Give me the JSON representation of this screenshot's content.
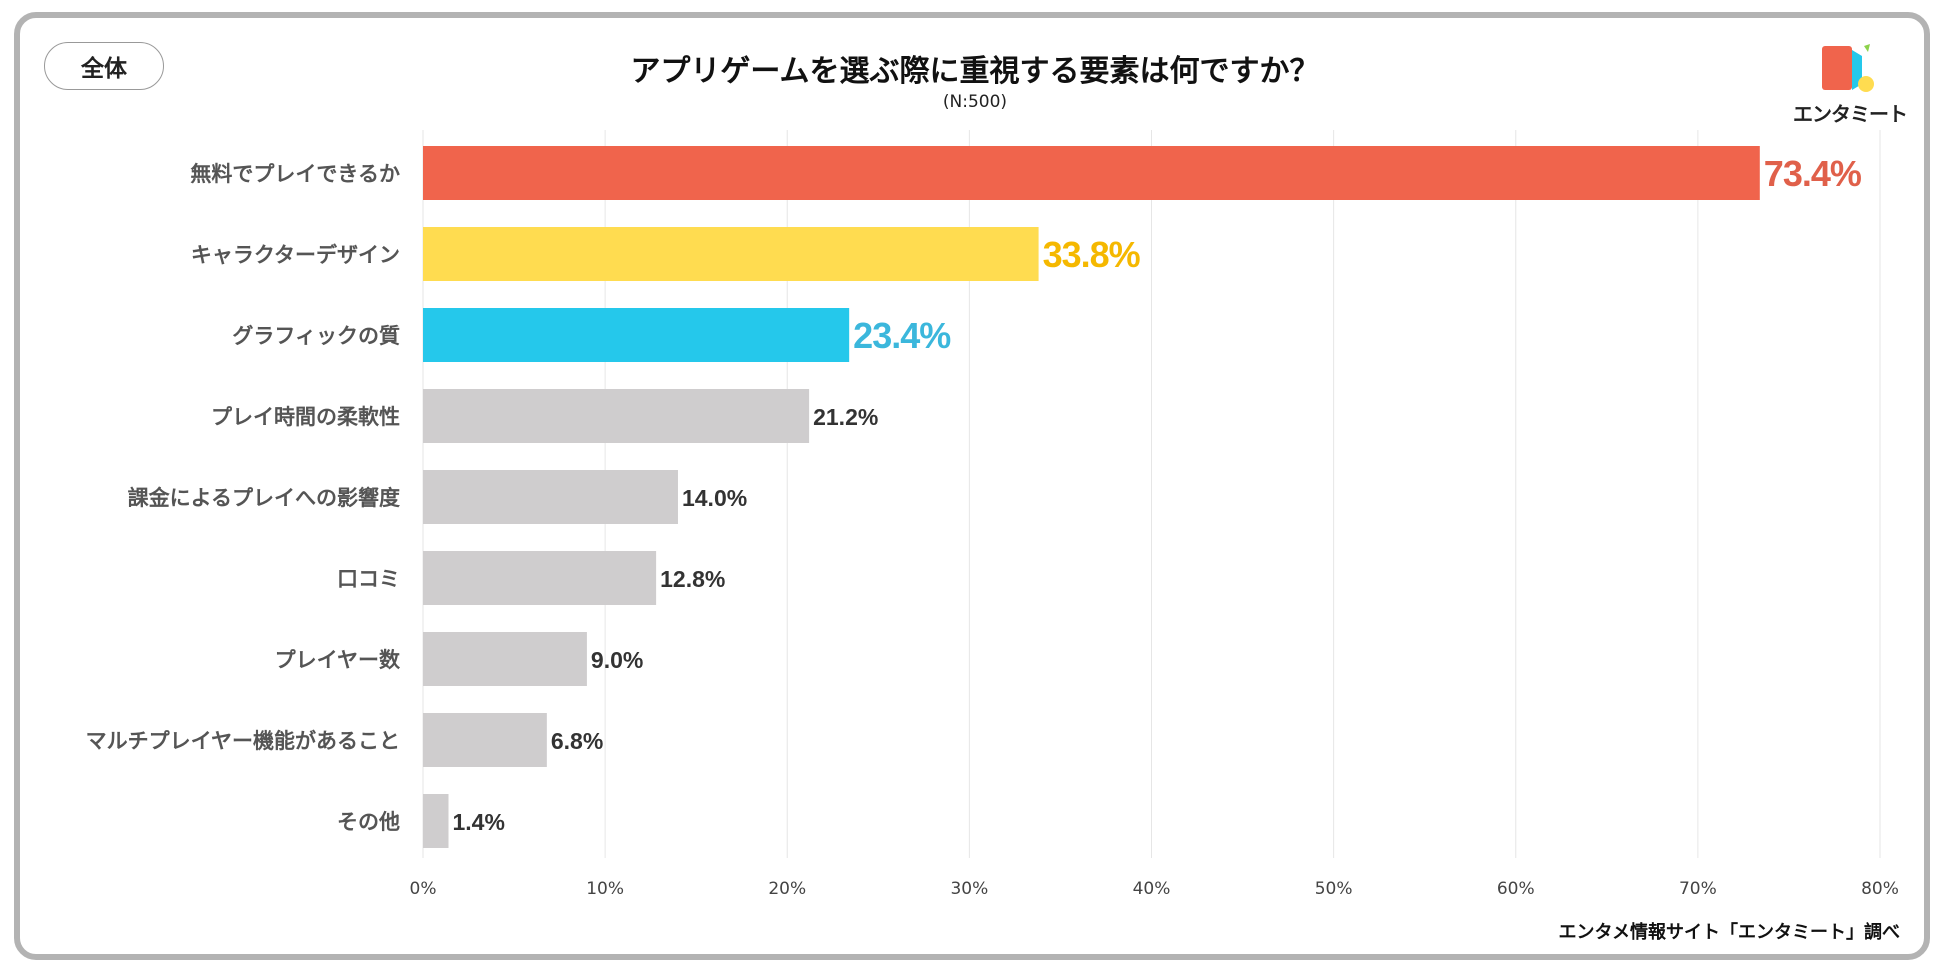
{
  "badge": "全体",
  "logo_text": "エンタミート",
  "source": "エンタメ情報サイト「エンタミート」調べ",
  "chart_data": {
    "type": "bar",
    "orientation": "horizontal",
    "title": "アプリゲームを選ぶ際に重視する要素は何ですか？",
    "subtitle": "(N:500)",
    "categories": [
      "無料でプレイできるか",
      "キャラクターデザイン",
      "グラフィックの質",
      "プレイ時間の柔軟性",
      "課金によるプレイへの影響度",
      "口コミ",
      "プレイヤー数",
      "マルチプレイヤー機能があること",
      "その他"
    ],
    "values": [
      73.4,
      33.8,
      23.4,
      21.2,
      14.0,
      12.8,
      9.0,
      6.8,
      1.4
    ],
    "value_labels": [
      "73.4%",
      "33.8%",
      "23.4%",
      "21.2%",
      "14.0%",
      "12.8%",
      "9.0%",
      "6.8%",
      "1.4%"
    ],
    "bar_colors": [
      "#f0644c",
      "#ffdc50",
      "#25c8eb",
      "#cfcdce",
      "#cfcdce",
      "#cfcdce",
      "#cfcdce",
      "#cfcdce",
      "#cfcdce"
    ],
    "label_colors": [
      "#e0604a",
      "#f5b800",
      "#3bb7dc",
      "#333333",
      "#333333",
      "#333333",
      "#333333",
      "#333333",
      "#333333"
    ],
    "xlim": [
      0,
      80
    ],
    "xticks": [
      0,
      10,
      20,
      30,
      40,
      50,
      60,
      70,
      80
    ],
    "xtick_labels": [
      "0%",
      "10%",
      "20%",
      "30%",
      "40%",
      "50%",
      "60%",
      "70%",
      "80%"
    ],
    "grid": true
  }
}
